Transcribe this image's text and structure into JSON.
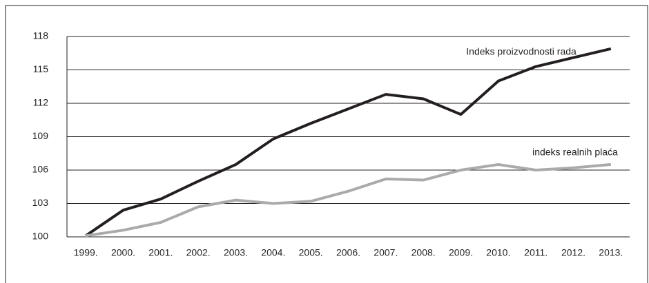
{
  "chart_data": {
    "type": "line",
    "categories": [
      "1999.",
      "2000.",
      "2001.",
      "2002.",
      "2003.",
      "2004.",
      "2005.",
      "2006.",
      "2007.",
      "2008.",
      "2009.",
      "2010.",
      "2011.",
      "2012.",
      "2013."
    ],
    "series": [
      {
        "name": "Indeks proizvodnosti rada",
        "color": "#231f20",
        "values": [
          100.1,
          102.4,
          103.4,
          105.0,
          106.5,
          108.8,
          110.2,
          111.5,
          112.8,
          112.4,
          111.0,
          114.0,
          115.3,
          116.1,
          116.9
        ]
      },
      {
        "name": "indeks realnih plaća",
        "color": "#aaaaaa",
        "values": [
          100.1,
          100.6,
          101.3,
          102.7,
          103.3,
          103.0,
          103.2,
          104.1,
          105.2,
          105.1,
          106.0,
          106.5,
          106.0,
          106.2,
          106.5
        ]
      }
    ],
    "ylim": [
      100,
      118
    ],
    "yticks": [
      100,
      103,
      106,
      109,
      112,
      115,
      118
    ],
    "grid": true
  }
}
